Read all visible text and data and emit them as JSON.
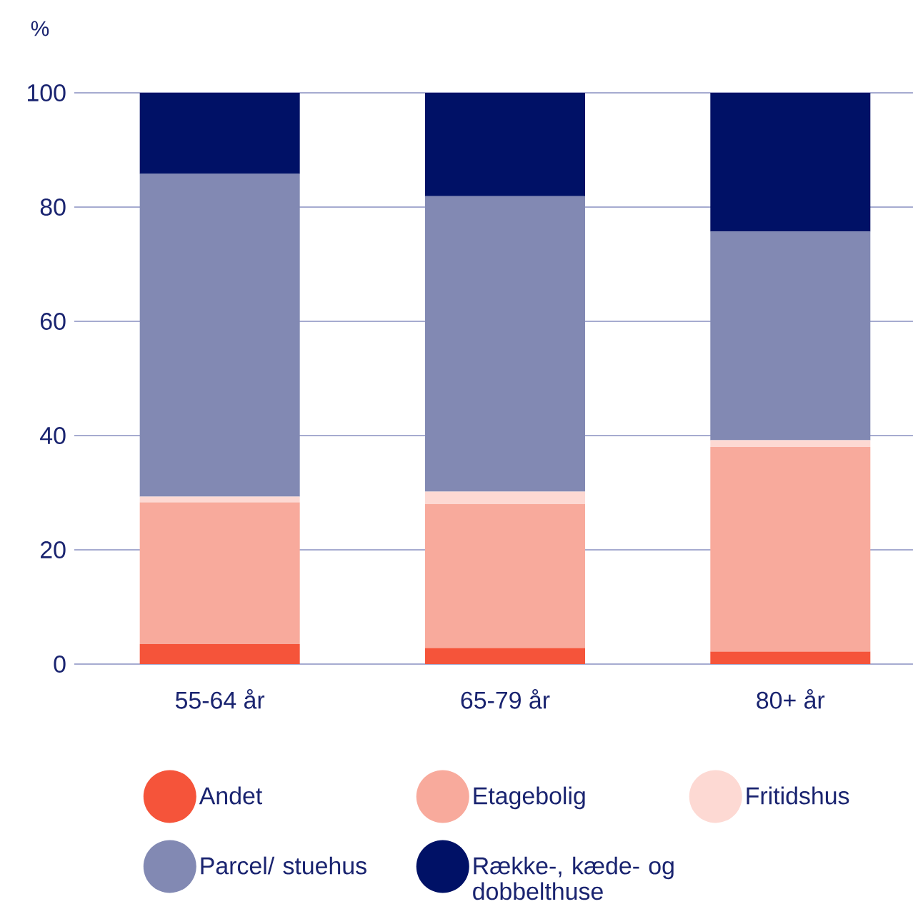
{
  "chart_data": {
    "type": "bar",
    "stacked": true,
    "ylabel": "%",
    "categories": [
      "55-64 år",
      "65-79 år",
      "80+ år"
    ],
    "series": [
      {
        "name": "Andet",
        "color": "#f5543a",
        "values": [
          3.5,
          2.8,
          2.2
        ]
      },
      {
        "name": "Etagebolig",
        "color": "#f8aa9c",
        "values": [
          24.8,
          25.2,
          35.8
        ]
      },
      {
        "name": "Fritidshus",
        "color": "#fdd9d3",
        "values": [
          1.0,
          2.2,
          1.2
        ]
      },
      {
        "name": "Parcel/ stuehus",
        "color": "#8289b3",
        "values": [
          56.5,
          51.7,
          36.5
        ]
      },
      {
        "name": "Række-, kæde- og dobbelthuse",
        "color": "#001166",
        "values": [
          14.2,
          18.1,
          24.3
        ]
      }
    ],
    "ylim": [
      0,
      100
    ],
    "yticks": [
      0,
      20,
      40,
      60,
      80,
      100
    ],
    "grid": "y",
    "legend": "bottom"
  }
}
